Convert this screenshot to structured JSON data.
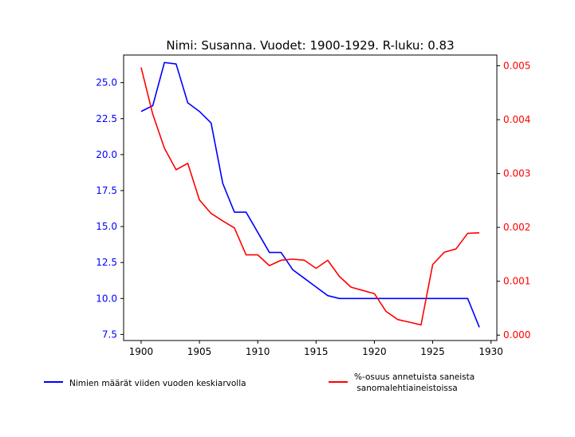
{
  "chart_data": {
    "type": "line",
    "title": "Nimi: Susanna. Vuodet: 1900-1929. R-luku: 0.83",
    "x": [
      1900,
      1901,
      1902,
      1903,
      1904,
      1905,
      1906,
      1907,
      1908,
      1909,
      1910,
      1911,
      1912,
      1913,
      1914,
      1915,
      1916,
      1917,
      1918,
      1919,
      1920,
      1921,
      1922,
      1923,
      1924,
      1925,
      1926,
      1927,
      1928,
      1929
    ],
    "xlim": [
      1898.5,
      1930.5
    ],
    "x_ticks": [
      1900,
      1905,
      1910,
      1915,
      1920,
      1925,
      1930
    ],
    "x_tick_labels": [
      "1900",
      "1905",
      "1910",
      "1915",
      "1920",
      "1925",
      "1930"
    ],
    "left_axis": {
      "ylim": [
        7.08,
        26.92
      ],
      "ticks": [
        7.5,
        10.0,
        12.5,
        15.0,
        17.5,
        20.0,
        22.5,
        25.0
      ],
      "tick_labels": [
        "7.5",
        "10.0",
        "12.5",
        "15.0",
        "17.5",
        "20.0",
        "22.5",
        "25.0"
      ],
      "color": "#0000ff"
    },
    "right_axis": {
      "ylim": [
        -0.0001,
        0.0052
      ],
      "ticks": [
        0.0,
        0.001,
        0.002,
        0.003,
        0.004,
        0.005
      ],
      "tick_labels": [
        "0.000",
        "0.001",
        "0.002",
        "0.003",
        "0.004",
        "0.005"
      ],
      "color": "#ff0000"
    },
    "series": [
      {
        "name": "Nimien määrät viiden vuoden keskiarvolla",
        "axis": "left",
        "color": "#0000ff",
        "values": [
          23.0,
          23.4,
          26.4,
          26.3,
          23.6,
          23.0,
          22.2,
          18.0,
          16.0,
          16.0,
          14.6,
          13.2,
          13.2,
          12.0,
          11.4,
          10.8,
          10.2,
          10.0,
          10.0,
          10.0,
          10.0,
          10.0,
          10.0,
          10.0,
          10.0,
          10.0,
          10.0,
          10.0,
          10.0,
          8.0
        ]
      },
      {
        "name": "%-osuus annetuista saneista\n sanomalehtiaineistoissa",
        "axis": "right",
        "color": "#ff0000",
        "values": [
          0.00497,
          0.0041,
          0.00347,
          0.00307,
          0.00319,
          0.00251,
          0.00226,
          0.00212,
          0.00199,
          0.00149,
          0.00149,
          0.00129,
          0.00139,
          0.00141,
          0.00139,
          0.00124,
          0.00139,
          0.00109,
          0.00089,
          0.00083,
          0.00077,
          0.00044,
          0.00029,
          0.00024,
          0.00019,
          0.00131,
          0.00154,
          0.0016,
          0.00189,
          0.0019
        ]
      }
    ],
    "legend": [
      {
        "label": "Nimien määrät viiden vuoden keskiarvolla",
        "color": "#0000ff"
      },
      {
        "label": "%-osuus annetuista saneista\n sanomalehtiaineistoissa",
        "color": "#ff0000"
      }
    ]
  }
}
